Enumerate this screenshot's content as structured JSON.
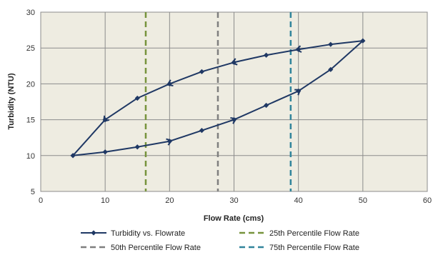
{
  "chart_data": {
    "type": "line",
    "title": "",
    "xlabel": "Flow Rate (cms)",
    "ylabel": "Turbidity (NTU)",
    "xlim": [
      0,
      60
    ],
    "ylim": [
      5,
      30
    ],
    "xticks": [
      0,
      10,
      20,
      30,
      40,
      50,
      60
    ],
    "yticks": [
      5,
      10,
      15,
      20,
      25,
      30
    ],
    "grid": true,
    "plot_background": "#eeecE1",
    "legend_position": "bottom",
    "series": [
      {
        "name": "Turbidity vs. Flowrate",
        "color": "#1f3864",
        "marker": "diamond",
        "points": [
          [
            5,
            10
          ],
          [
            10,
            10.5
          ],
          [
            15,
            11.2
          ],
          [
            20,
            12
          ],
          [
            25,
            13.5
          ],
          [
            30,
            15
          ],
          [
            35,
            17
          ],
          [
            40,
            19
          ],
          [
            45,
            22
          ],
          [
            50,
            26
          ],
          [
            45,
            25.5
          ],
          [
            40,
            24.8
          ],
          [
            35,
            24
          ],
          [
            30,
            23
          ],
          [
            25,
            21.7
          ],
          [
            20,
            20
          ],
          [
            15,
            18
          ],
          [
            10,
            15
          ],
          [
            5,
            10
          ]
        ],
        "arrow_segments": [
          [
            20,
            12
          ],
          [
            30,
            15
          ],
          [
            40,
            19
          ],
          [
            40,
            24.8
          ],
          [
            30,
            23
          ],
          [
            20,
            20
          ],
          [
            10,
            15
          ]
        ]
      }
    ],
    "reference_lines": [
      {
        "name": "25th Percentile Flow Rate",
        "x": 16.3,
        "color": "#77933c"
      },
      {
        "name": "50th Percentile Flow Rate",
        "x": 27.5,
        "color": "#7f7f7f"
      },
      {
        "name": "75th Percentile Flow Rate",
        "x": 38.8,
        "color": "#31849b"
      }
    ]
  }
}
